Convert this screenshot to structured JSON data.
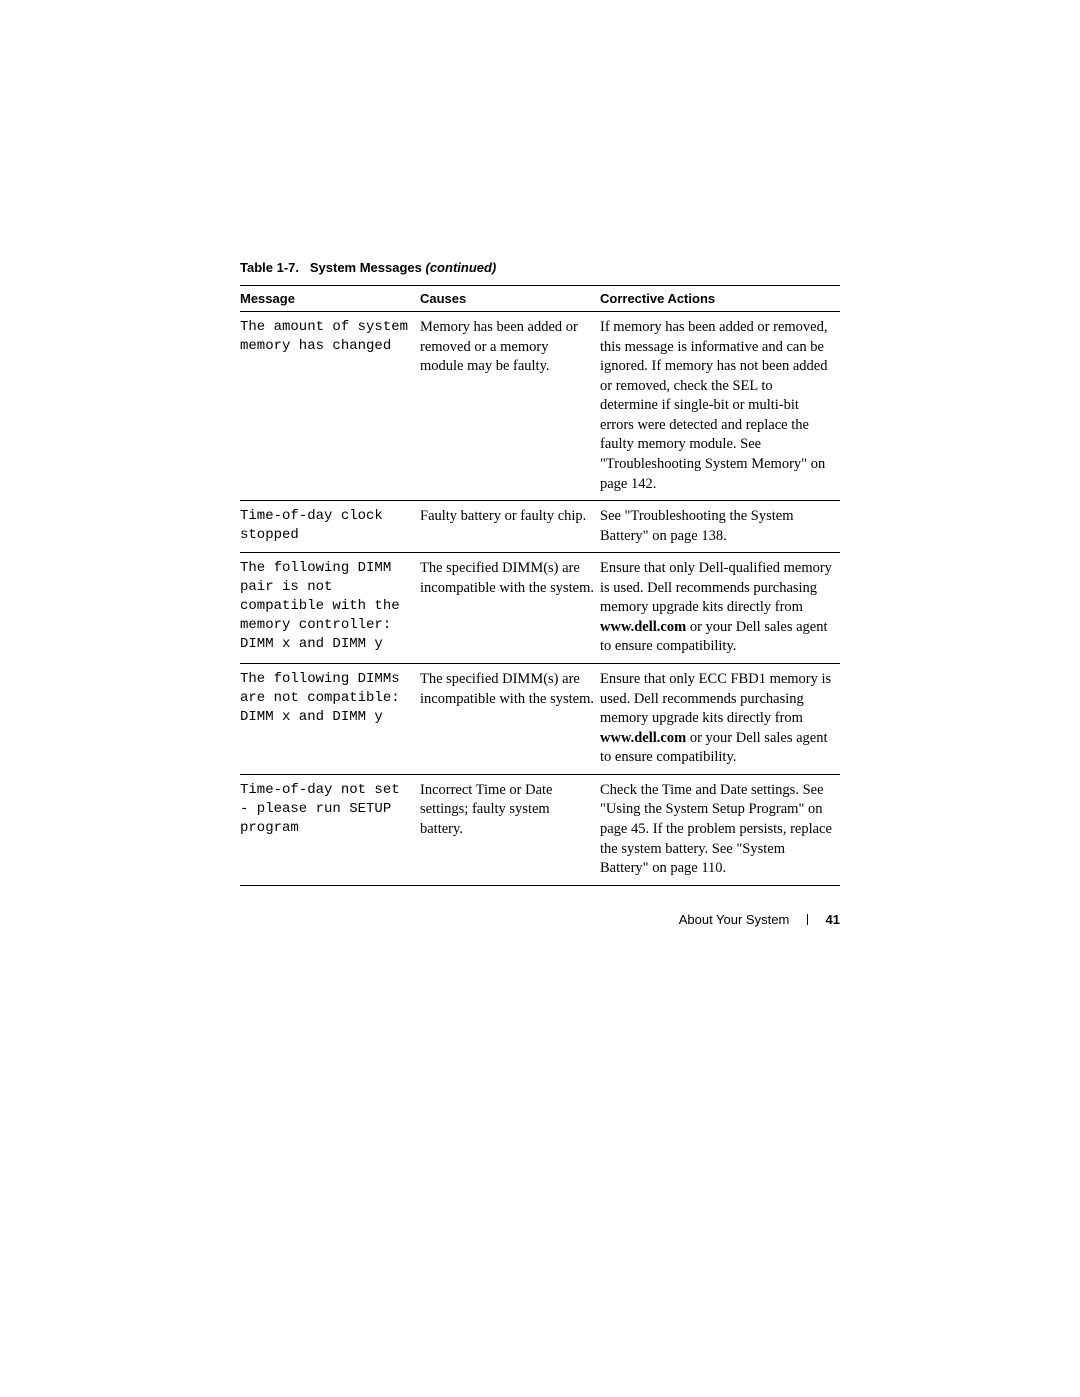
{
  "table_caption_prefix": "Table 1-7.",
  "table_caption_text": "System Messages",
  "table_caption_suffix": "(continued)",
  "headers": {
    "message": "Message",
    "causes": "Causes",
    "actions": "Corrective Actions"
  },
  "rows": [
    {
      "message": "The amount of system memory has changed",
      "causes": "Memory has been added or removed or a memory module may be faulty.",
      "actions": "If memory has been added or removed, this message is informative and can be ignored. If memory has not been added or removed, check the SEL to determine if single-bit or multi-bit errors were detected and replace the faulty memory module. See \"Troubleshooting System Memory\" on page 142."
    },
    {
      "message": "Time-of-day clock stopped",
      "causes": "Faulty battery or faulty chip.",
      "actions": "See \"Troubleshooting the System Battery\" on page 138."
    },
    {
      "message": "The following DIMM pair is not compatible with the memory controller: DIMM x and DIMM y",
      "causes": "The specified DIMM(s) are incompatible with the system.",
      "actions_pre": "Ensure that only Dell-qualified memory is used. Dell recommends purchasing memory upgrade kits directly from ",
      "actions_bold": "www.dell.com",
      "actions_post": " or your Dell sales agent to ensure compatibility."
    },
    {
      "message": "The following DIMMs are not compatible: DIMM x and DIMM y",
      "causes": "The specified DIMM(s) are incompatible with the system.",
      "actions_pre": "Ensure that only ECC FBD1 memory is used. Dell recommends purchasing memory upgrade kits directly from ",
      "actions_bold": "www.dell.com",
      "actions_post": " or your Dell sales agent to ensure compatibility."
    },
    {
      "message": "Time-of-day not set - please run SETUP program",
      "causes": "Incorrect Time or Date settings; faulty system battery.",
      "actions": "Check the Time and Date settings. See \"Using the System Setup Program\" on page 45. If the problem persists, replace the system battery. See \"System Battery\" on page 110."
    }
  ],
  "footer": {
    "section": "About Your System",
    "page_number": "41"
  }
}
